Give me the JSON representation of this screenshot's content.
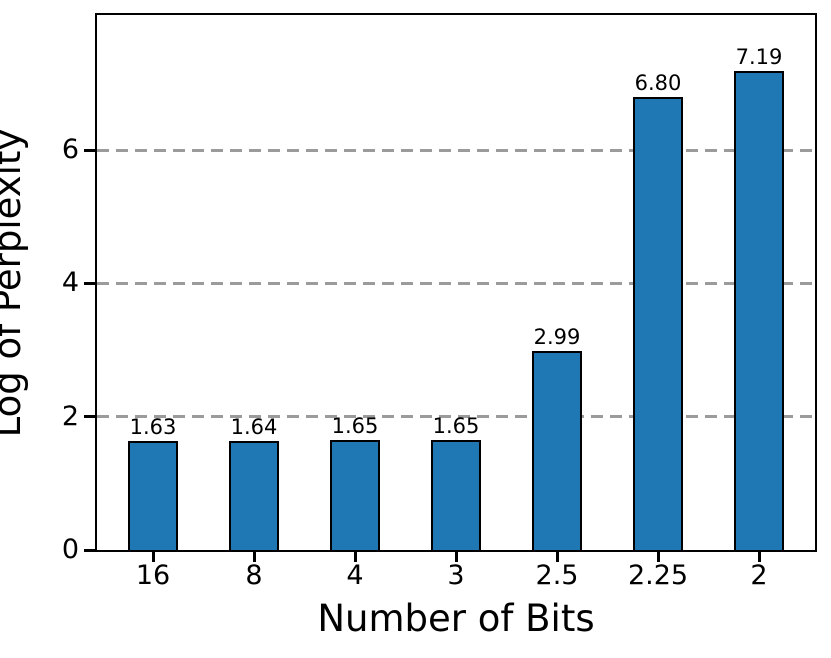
{
  "chart_data": {
    "type": "bar",
    "title": "",
    "xlabel": "Number of Bits",
    "ylabel": "Log of Perplexity",
    "categories": [
      "16",
      "8",
      "4",
      "3",
      "2.5",
      "2.25",
      "2"
    ],
    "values": [
      1.63,
      1.64,
      1.65,
      1.65,
      2.99,
      6.8,
      7.19
    ],
    "bar_labels": [
      "1.63",
      "1.64",
      "1.65",
      "1.65",
      "2.99",
      "6.80",
      "7.19"
    ],
    "yticks": [
      0,
      2,
      4,
      6
    ],
    "ytick_labels": [
      "0",
      "2",
      "4",
      "6"
    ],
    "ylim": [
      0,
      8.03
    ],
    "grid": "horizontal-dashed",
    "legend_position": "none",
    "colors": {
      "bar_fill": "#1f77b4",
      "bar_edge": "#000000",
      "gridline": "#9b9b9b",
      "axis": "#000000",
      "text": "#000000",
      "background": "#ffffff"
    }
  }
}
